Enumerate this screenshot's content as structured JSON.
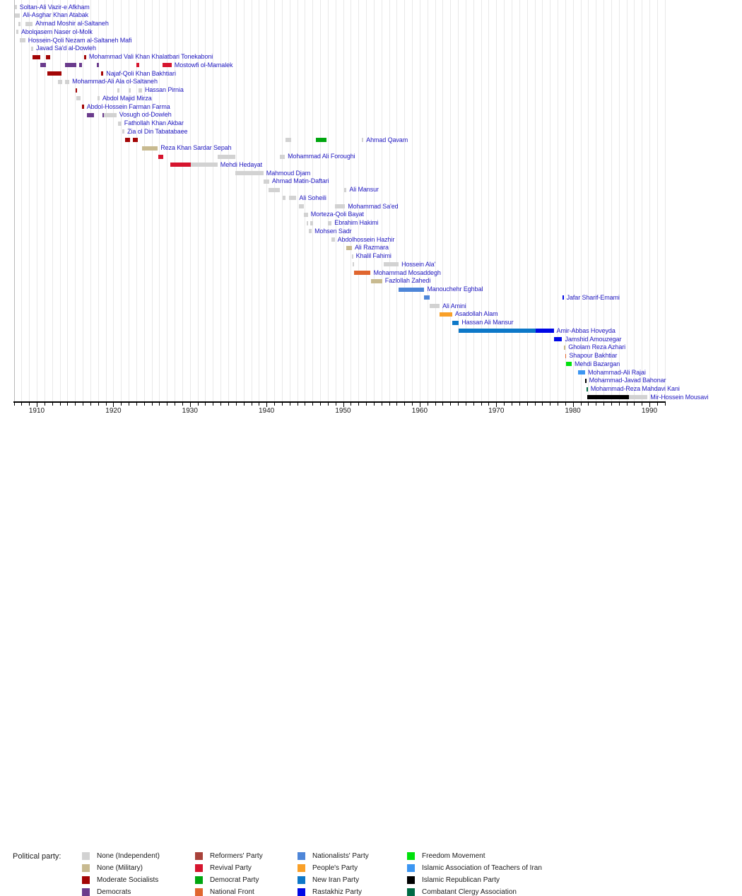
{
  "chart_data": {
    "type": "timeline",
    "x_axis": {
      "min": 1907,
      "max": 1992,
      "tick_labels": [
        1910,
        1920,
        1930,
        1940,
        1950,
        1960,
        1970,
        1980,
        1990
      ],
      "minor_tick_every": 1,
      "grid": "vertical-yearly"
    },
    "legend_title": "Political party:",
    "parties": {
      "ind": {
        "label": "None (Independent)",
        "color": "#d2d2d2"
      },
      "mil": {
        "label": "None (Military)",
        "color": "#c8ba90"
      },
      "ms": {
        "label": "Moderate Socialists",
        "color": "#a30505"
      },
      "dem": {
        "label": "Democrats",
        "color": "#6a3b8c"
      },
      "ref": {
        "label": "Reformers' Party",
        "color": "#a8423a"
      },
      "rev": {
        "label": "Revival Party",
        "color": "#d6152e"
      },
      "dp": {
        "label": "Democrat Party",
        "color": "#00a60f"
      },
      "nf": {
        "label": "National Front",
        "color": "#e0662f"
      },
      "nat": {
        "label": "Nationalists' Party",
        "color": "#4e86d8"
      },
      "pp": {
        "label": "People's Party",
        "color": "#f9a028"
      },
      "nip": {
        "label": "New Iran Party",
        "color": "#0d78c8"
      },
      "ras": {
        "label": "Rastakhiz Party",
        "color": "#0008e6"
      },
      "fm": {
        "label": "Freedom Movement",
        "color": "#00e10c"
      },
      "iat": {
        "label": "Islamic Association of Teachers of Iran",
        "color": "#3c96f2"
      },
      "irp": {
        "label": "Islamic Republican Party",
        "color": "#000000"
      },
      "cca": {
        "label": "Combatant Clergy Association",
        "color": "#006b45"
      }
    },
    "legend_columns": [
      [
        "ind",
        "mil",
        "ms",
        "dem"
      ],
      [
        "ref",
        "rev",
        "dp",
        "nf"
      ],
      [
        "nat",
        "pp",
        "nip",
        "ras"
      ],
      [
        "fm",
        "iat",
        "irp",
        "cca"
      ]
    ],
    "people": [
      {
        "name": "Soltan-Ali Vazir-e Afkham",
        "terms": [
          [
            1907.1,
            1907.4,
            "ind"
          ]
        ]
      },
      {
        "name": "Ali-Asghar Khan Atabak",
        "terms": [
          [
            1907.1,
            1907.8,
            "ind"
          ]
        ]
      },
      {
        "name": "Ahmad Moshir al-Saltaneh",
        "terms": [
          [
            1907.55,
            1907.85,
            "ind"
          ],
          [
            1908.5,
            1909.45,
            "ind"
          ]
        ]
      },
      {
        "name": "Abolqasem Naser ol-Molk",
        "terms": [
          [
            1907.3,
            1907.6,
            "ind"
          ]
        ]
      },
      {
        "name": "Hossein-Qoli Nezam al-Saltaneh Mafi",
        "terms": [
          [
            1907.8,
            1908.5,
            "ind"
          ]
        ]
      },
      {
        "name": "Javad Sa'd al-Dowleh",
        "terms": [
          [
            1909.25,
            1909.55,
            "ind"
          ]
        ]
      },
      {
        "name": "Mohammad Vali Khan Khalatbari Tonekaboni",
        "terms": [
          [
            1909.45,
            1910.5,
            "ms"
          ],
          [
            1911.15,
            1911.7,
            "ms"
          ],
          [
            1916.2,
            1916.45,
            "ms"
          ]
        ]
      },
      {
        "name": "Mostowfi ol-Mamalek",
        "terms": [
          [
            1910.5,
            1911.2,
            "dem"
          ],
          [
            1913.7,
            1915.2,
            "dem"
          ],
          [
            1915.55,
            1915.95,
            "dem"
          ],
          [
            1917.8,
            1918.1,
            "dem"
          ],
          [
            1923.0,
            1923.4,
            "rev"
          ],
          [
            1926.4,
            1927.6,
            "rev"
          ]
        ]
      },
      {
        "name": "Najaf-Qoli Khan Bakhtiari",
        "terms": [
          [
            1911.4,
            1913.2,
            "ms"
          ],
          [
            1918.4,
            1918.7,
            "ms"
          ]
        ]
      },
      {
        "name": "Mohammad-Ali Ala ol-Saltaneh",
        "terms": [
          [
            1912.8,
            1913.3,
            "ind"
          ],
          [
            1913.7,
            1914.25,
            "ind"
          ]
        ]
      },
      {
        "name": "Hassan Pirnia",
        "terms": [
          [
            1915.1,
            1915.3,
            "ms"
          ],
          [
            1920.5,
            1920.8,
            "ind"
          ],
          [
            1922.0,
            1922.3,
            "ind"
          ],
          [
            1923.3,
            1923.75,
            "ind"
          ]
        ]
      },
      {
        "name": "Abdol Majid Mirza",
        "terms": [
          [
            1915.2,
            1915.7,
            "ind"
          ],
          [
            1917.9,
            1918.2,
            "ind"
          ]
        ]
      },
      {
        "name": "Abdol-Hossein Farman Farma",
        "terms": [
          [
            1915.9,
            1916.15,
            "ms"
          ]
        ]
      },
      {
        "name": "Vosugh od-Dowleh",
        "terms": [
          [
            1916.5,
            1917.5,
            "dem"
          ],
          [
            1918.6,
            1918.8,
            "dem"
          ],
          [
            1918.8,
            1920.4,
            "ind"
          ]
        ]
      },
      {
        "name": "Fathollah Khan Akbar",
        "terms": [
          [
            1920.6,
            1921.05,
            "ind"
          ]
        ]
      },
      {
        "name": "Zia ol Din Tabatabaee",
        "terms": [
          [
            1921.15,
            1921.45,
            "ind"
          ]
        ]
      },
      {
        "name": "Ahmad Qavam",
        "terms": [
          [
            1921.5,
            1922.2,
            "ms"
          ],
          [
            1922.5,
            1923.2,
            "ms"
          ],
          [
            1942.5,
            1943.25,
            "ind"
          ],
          [
            1946.4,
            1947.8,
            "dp"
          ],
          [
            1952.4,
            1952.65,
            "ind"
          ]
        ]
      },
      {
        "name": "Reza Khan Sardar Sepah",
        "terms": [
          [
            1923.7,
            1925.8,
            "mil"
          ]
        ]
      },
      {
        "name": "Mohammad Ali Foroughi",
        "terms": [
          [
            1925.9,
            1926.5,
            "rev"
          ],
          [
            1933.6,
            1935.9,
            "ind"
          ],
          [
            1941.7,
            1942.4,
            "ind"
          ]
        ]
      },
      {
        "name": "Mehdi Hedayat",
        "terms": [
          [
            1927.45,
            1930.1,
            "rev"
          ],
          [
            1930.1,
            1933.6,
            "ind"
          ]
        ]
      },
      {
        "name": "Mahmoud Djam",
        "terms": [
          [
            1935.9,
            1939.6,
            "ind"
          ]
        ]
      },
      {
        "name": "Ahmad Matin-Daftari",
        "terms": [
          [
            1939.6,
            1940.35,
            "ind"
          ]
        ]
      },
      {
        "name": "Ali Mansur",
        "terms": [
          [
            1940.3,
            1941.7,
            "ind"
          ],
          [
            1950.1,
            1950.45,
            "ind"
          ]
        ]
      },
      {
        "name": "Ali Soheili",
        "terms": [
          [
            1942.1,
            1942.5,
            "ind"
          ],
          [
            1942.95,
            1943.9,
            "ind"
          ]
        ]
      },
      {
        "name": "Mohammad Sa'ed",
        "terms": [
          [
            1944.2,
            1944.9,
            "ind"
          ],
          [
            1948.95,
            1950.25,
            "ind"
          ]
        ]
      },
      {
        "name": "Morteza-Qoli Bayat",
        "terms": [
          [
            1944.9,
            1945.4,
            "ind"
          ]
        ]
      },
      {
        "name": "Ebrahim Hakimi",
        "terms": [
          [
            1945.25,
            1945.45,
            "ind"
          ],
          [
            1945.7,
            1946.05,
            "ind"
          ],
          [
            1948.05,
            1948.5,
            "ind"
          ]
        ]
      },
      {
        "name": "Mohsen Sadr",
        "terms": [
          [
            1945.5,
            1945.9,
            "ind"
          ]
        ]
      },
      {
        "name": "Abdolhossein Hazhir",
        "terms": [
          [
            1948.5,
            1948.9,
            "ind"
          ]
        ]
      },
      {
        "name": "Ali Razmara",
        "terms": [
          [
            1950.45,
            1951.15,
            "mil"
          ]
        ]
      },
      {
        "name": "Khalil Fahimi",
        "terms": [
          [
            1951.15,
            1951.3,
            "ind"
          ]
        ]
      },
      {
        "name": "Hossein Ala'",
        "terms": [
          [
            1951.25,
            1951.45,
            "ind"
          ],
          [
            1955.3,
            1957.25,
            "ind"
          ]
        ]
      },
      {
        "name": "Mohammad Mosaddegh",
        "terms": [
          [
            1951.4,
            1953.6,
            "nf"
          ]
        ]
      },
      {
        "name": "Fazlollah Zahedi",
        "terms": [
          [
            1953.65,
            1955.1,
            "mil"
          ]
        ]
      },
      {
        "name": "Manouchehr Eghbal",
        "terms": [
          [
            1957.25,
            1960.6,
            "nat"
          ]
        ]
      },
      {
        "name": "Jafar Sharif-Emami",
        "terms": [
          [
            1960.6,
            1961.3,
            "nat"
          ],
          [
            1978.6,
            1978.8,
            "ras"
          ]
        ]
      },
      {
        "name": "Ali Amini",
        "terms": [
          [
            1961.3,
            1962.6,
            "ind"
          ]
        ]
      },
      {
        "name": "Asadollah Alam",
        "terms": [
          [
            1962.6,
            1964.25,
            "pp"
          ]
        ]
      },
      {
        "name": "Hassan Ali Mansur",
        "terms": [
          [
            1964.25,
            1965.1,
            "nip"
          ]
        ]
      },
      {
        "name": "Amir-Abbas Hoveyda",
        "terms": [
          [
            1965.1,
            1975.15,
            "nip"
          ],
          [
            1975.15,
            1977.5,
            "ras"
          ]
        ]
      },
      {
        "name": "Jamshid Amouzegar",
        "terms": [
          [
            1977.5,
            1978.6,
            "ras"
          ]
        ]
      },
      {
        "name": "Gholam Reza Azhari",
        "terms": [
          [
            1978.85,
            1979.05,
            "mil"
          ]
        ]
      },
      {
        "name": "Shapour Bakhtiar",
        "terms": [
          [
            1979.0,
            1979.15,
            "nf"
          ]
        ]
      },
      {
        "name": "Mehdi Bazargan",
        "terms": [
          [
            1979.15,
            1979.85,
            "fm"
          ]
        ]
      },
      {
        "name": "Mohammad-Ali Rajai",
        "terms": [
          [
            1980.7,
            1981.6,
            "iat"
          ]
        ]
      },
      {
        "name": "Mohammad-Javad Bahonar",
        "terms": [
          [
            1981.6,
            1981.75,
            "irp"
          ]
        ]
      },
      {
        "name": "Mohammad-Reza Mahdavi Kani",
        "terms": [
          [
            1981.75,
            1981.95,
            "cca"
          ]
        ]
      },
      {
        "name": "Mir-Hossein Mousavi",
        "terms": [
          [
            1981.85,
            1987.3,
            "irp"
          ],
          [
            1987.3,
            1989.75,
            "ind"
          ]
        ]
      }
    ]
  }
}
